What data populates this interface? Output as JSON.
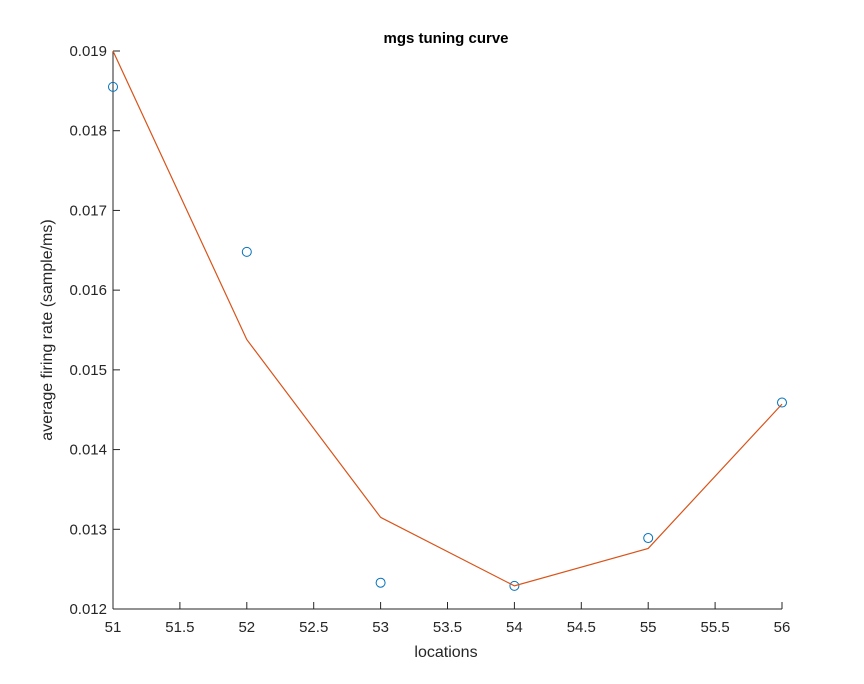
{
  "chart_data": {
    "type": "line",
    "title": "mgs tuning curve",
    "xlabel": "locations",
    "ylabel": "average firing rate (sample/ms)",
    "xlim": [
      51,
      56
    ],
    "ylim": [
      0.012,
      0.019
    ],
    "xticks": [
      "51",
      "51.5",
      "52",
      "52.5",
      "53",
      "53.5",
      "54",
      "54.5",
      "55",
      "55.5",
      "56"
    ],
    "yticks": [
      "0.012",
      "0.013",
      "0.014",
      "0.015",
      "0.016",
      "0.017",
      "0.018",
      "0.019"
    ],
    "grid": false,
    "legend": false,
    "series": [
      {
        "style": "markers",
        "marker": "circle",
        "color": "#0072BD",
        "x": [
          51,
          52,
          53,
          54,
          55,
          56
        ],
        "y": [
          0.01855,
          0.01648,
          0.01233,
          0.01229,
          0.01289,
          0.01459
        ]
      },
      {
        "style": "line",
        "color": "#D95319",
        "x": [
          51,
          52,
          53,
          54,
          55,
          56
        ],
        "y": [
          0.019,
          0.01538,
          0.01315,
          0.01229,
          0.01276,
          0.01457
        ]
      }
    ]
  }
}
